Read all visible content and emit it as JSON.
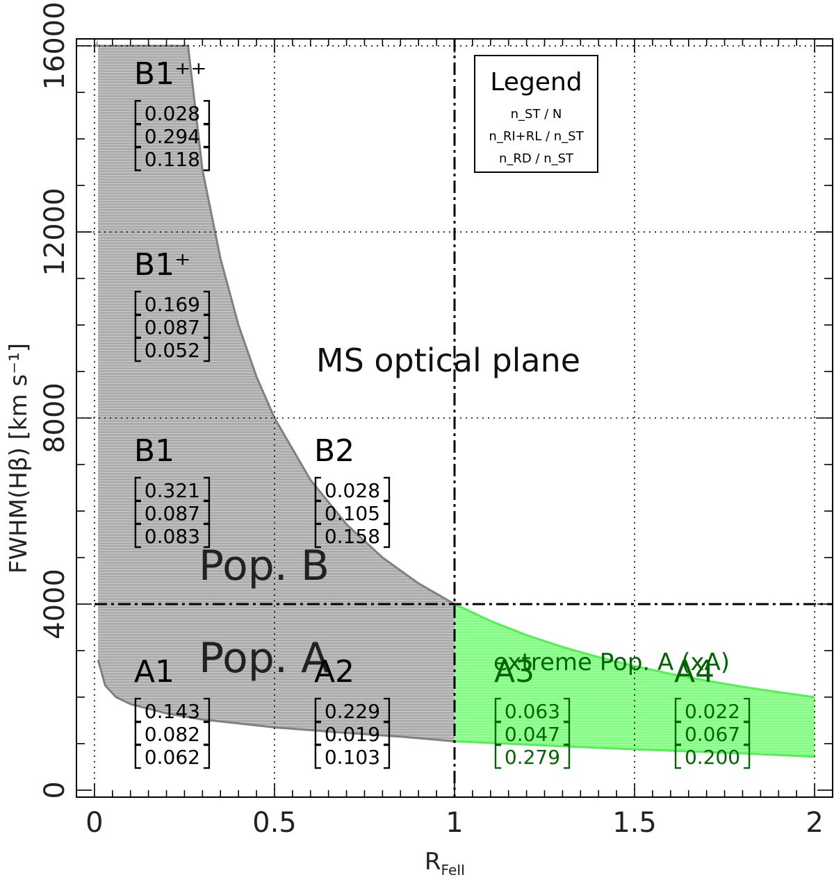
{
  "chart_data": {
    "type": "area",
    "xlabel": "R",
    "xlabel_sub": "FeII",
    "ylabel": "FWHM(Hβ)  [km s⁻¹]",
    "xlim": [
      -0.05,
      2.05
    ],
    "ylim": [
      -150,
      16150
    ],
    "x_ticks": [
      0,
      0.5,
      1,
      1.5,
      2
    ],
    "x_tick_labels": [
      "0",
      "0.5",
      "1",
      "1.5",
      "2"
    ],
    "y_ticks": [
      0,
      4000,
      8000,
      12000,
      16000
    ],
    "y_tick_labels": [
      "0",
      "4000",
      "8000",
      "12000",
      "16000"
    ],
    "grid": true,
    "grid_x": [
      0,
      0.5,
      1.5,
      2
    ],
    "grid_y": [
      8000,
      12000,
      16000
    ],
    "boundaries": {
      "x": 1,
      "y": 4000
    },
    "center_label": "MS optical plane",
    "population_labels": {
      "pop_b": "Pop.  B",
      "pop_a": "Pop.  A",
      "xa": "extreme Pop. A (xA)"
    },
    "series": [
      {
        "fill": "#9a9a9a",
        "upper": [
          [
            0.0,
            16000
          ],
          [
            0.26,
            16000
          ],
          [
            0.3,
            13333
          ],
          [
            0.35,
            11429
          ],
          [
            0.4,
            10000
          ],
          [
            0.45,
            8889
          ],
          [
            0.5,
            8000
          ],
          [
            0.6,
            6667
          ],
          [
            0.7,
            5714
          ],
          [
            0.8,
            5000
          ],
          [
            0.9,
            4444
          ],
          [
            1.0,
            4000
          ]
        ],
        "lower": [
          [
            0.01,
            2800
          ],
          [
            0.03,
            2250
          ],
          [
            0.06,
            2000
          ],
          [
            0.1,
            1850
          ],
          [
            0.2,
            1650
          ],
          [
            0.3,
            1520
          ],
          [
            0.5,
            1350
          ],
          [
            0.7,
            1230
          ],
          [
            0.85,
            1150
          ],
          [
            1.0,
            1050
          ]
        ]
      },
      {
        "fill": "#66ff66",
        "upper": [
          [
            1.0,
            4000
          ],
          [
            1.1,
            3636
          ],
          [
            1.2,
            3333
          ],
          [
            1.3,
            3077
          ],
          [
            1.4,
            2857
          ],
          [
            1.5,
            2667
          ],
          [
            1.6,
            2500
          ],
          [
            1.7,
            2353
          ],
          [
            1.8,
            2222
          ],
          [
            1.9,
            2105
          ],
          [
            2.0,
            2000
          ]
        ],
        "lower": [
          [
            1.0,
            1050
          ],
          [
            1.2,
            980
          ],
          [
            1.4,
            910
          ],
          [
            1.6,
            850
          ],
          [
            1.8,
            790
          ],
          [
            2.0,
            720
          ]
        ]
      }
    ],
    "regions": [
      {
        "name": "B1⁺⁺",
        "values": [
          "0.028",
          "0.294",
          "0.118"
        ],
        "color": "#000000",
        "x": 0.11,
        "y": 14400
      },
      {
        "name": "B1⁺",
        "values": [
          "0.169",
          "0.087",
          "0.052"
        ],
        "color": "#000000",
        "x": 0.11,
        "y": 10300
      },
      {
        "name": "B1",
        "values": [
          "0.321",
          "0.087",
          "0.083"
        ],
        "color": "#000000",
        "x": 0.11,
        "y": 6300
      },
      {
        "name": "B2",
        "values": [
          "0.028",
          "0.105",
          "0.158"
        ],
        "color": "#000000",
        "x": 0.61,
        "y": 6300
      },
      {
        "name": "A1",
        "values": [
          "0.143",
          "0.082",
          "0.062"
        ],
        "color": "#000000",
        "x": 0.11,
        "y": 1550
      },
      {
        "name": "A2",
        "values": [
          "0.229",
          "0.019",
          "0.103"
        ],
        "color": "#000000",
        "x": 0.61,
        "y": 1550
      },
      {
        "name": "A3",
        "values": [
          "0.063",
          "0.047",
          "0.279"
        ],
        "color": "#006400",
        "x": 1.11,
        "y": 1550
      },
      {
        "name": "A4",
        "values": [
          "0.022",
          "0.067",
          "0.200"
        ],
        "color": "#006400",
        "x": 1.61,
        "y": 1550
      }
    ],
    "legend": {
      "title": "Legend",
      "entries": [
        "n_ST / N",
        "n_RI+RL / n_ST",
        "n_RD / n_ST"
      ],
      "placement": "top-right"
    }
  }
}
